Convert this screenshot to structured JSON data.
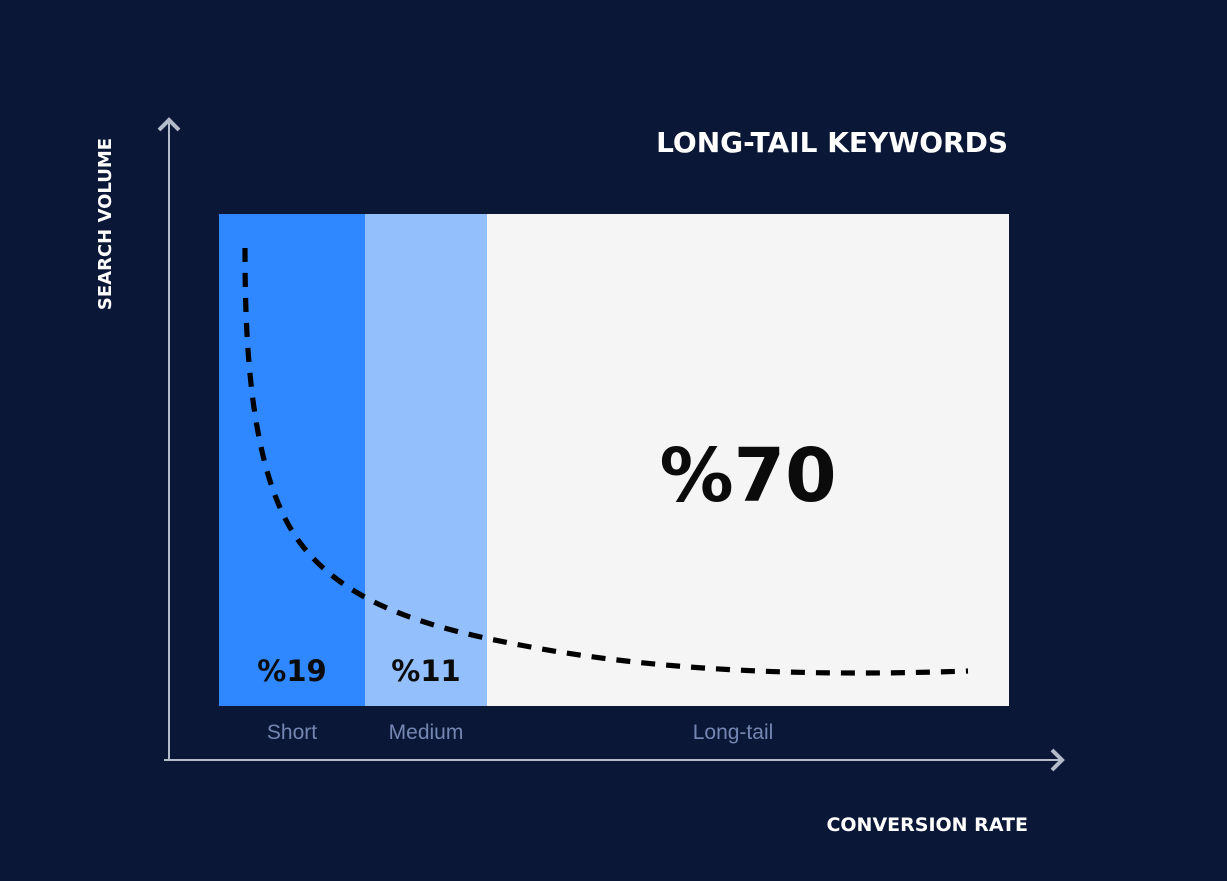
{
  "chart_data": {
    "type": "bar",
    "title": "LONG-TAIL KEYWORDS",
    "xlabel": "CONVERSION RATE",
    "ylabel": "SEARCH VOLUME",
    "categories": [
      "Short",
      "Medium",
      "Long-tail"
    ],
    "values": [
      19,
      11,
      70
    ],
    "value_labels": [
      "%19",
      "%11",
      "%70"
    ],
    "unit": "%",
    "colors": {
      "background": "#0b1736",
      "axis": "#b4bccc",
      "short": "#2f88ff",
      "medium": "#93c0fd",
      "long_tail": "#f5f5f6",
      "value_text": "#0b0b0b",
      "category_text": "#7487b3",
      "heading_text": "#ffffff"
    },
    "curve": {
      "style": "dashed",
      "color": "#000000",
      "shape": "decreasing long-tail demand curve"
    },
    "grid": false,
    "legend": "none"
  }
}
